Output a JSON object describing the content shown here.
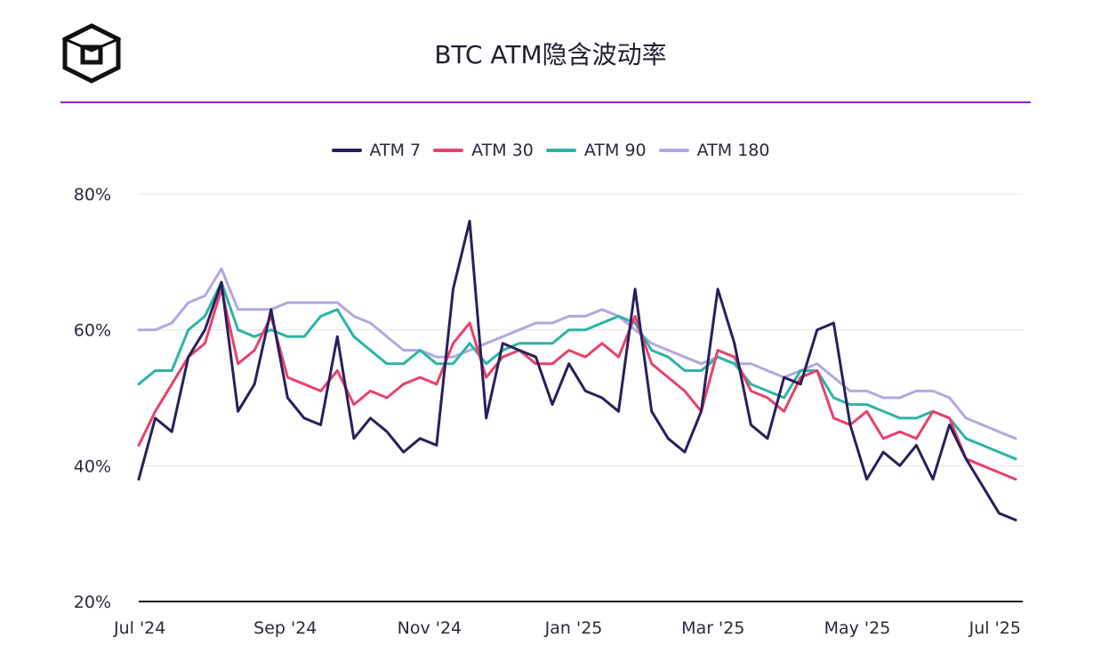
{
  "header": {
    "title": "BTC ATM隐含波动率"
  },
  "icons": {
    "logo": "cube-logo-icon"
  },
  "colors": {
    "accent_rule": "#8b1fe0",
    "atm7": "#2a1f5c",
    "atm30": "#e8426a",
    "atm90": "#2bb5a5",
    "atm180": "#b3a7e3"
  },
  "chart_data": {
    "type": "line",
    "title": "BTC ATM隐含波动率",
    "xlabel": "",
    "ylabel": "",
    "ylim": [
      20,
      80
    ],
    "y_ticks": [
      "80%",
      "60%",
      "40%",
      "20%"
    ],
    "y_tick_values": [
      80,
      60,
      40,
      20
    ],
    "x_ticks": [
      "Jul '24",
      "Sep '24",
      "Nov '24",
      "Jan '25",
      "Mar '25",
      "May '25",
      "Jul '25"
    ],
    "x_tick_values": [
      "2024-07-01",
      "2024-09-01",
      "2024-11-01",
      "2025-01-01",
      "2025-03-01",
      "2025-05-01",
      "2025-07-01"
    ],
    "x_range": [
      "2024-07-01",
      "2025-07-10"
    ],
    "grid": true,
    "legend_position": "top-center",
    "x": [
      "2024-07-01",
      "2024-07-08",
      "2024-07-15",
      "2024-07-22",
      "2024-07-29",
      "2024-08-05",
      "2024-08-12",
      "2024-08-19",
      "2024-08-26",
      "2024-09-02",
      "2024-09-09",
      "2024-09-16",
      "2024-09-23",
      "2024-09-30",
      "2024-10-07",
      "2024-10-14",
      "2024-10-21",
      "2024-10-28",
      "2024-11-04",
      "2024-11-11",
      "2024-11-18",
      "2024-11-25",
      "2024-12-02",
      "2024-12-09",
      "2024-12-16",
      "2024-12-23",
      "2024-12-30",
      "2025-01-06",
      "2025-01-13",
      "2025-01-20",
      "2025-01-27",
      "2025-02-03",
      "2025-02-10",
      "2025-02-17",
      "2025-02-24",
      "2025-03-03",
      "2025-03-10",
      "2025-03-17",
      "2025-03-24",
      "2025-03-31",
      "2025-04-07",
      "2025-04-14",
      "2025-04-21",
      "2025-04-28",
      "2025-05-05",
      "2025-05-12",
      "2025-05-19",
      "2025-05-26",
      "2025-06-02",
      "2025-06-09",
      "2025-06-16",
      "2025-06-23",
      "2025-06-30",
      "2025-07-07"
    ],
    "series": [
      {
        "name": "ATM 7",
        "values": [
          38,
          47,
          45,
          56,
          60,
          67,
          48,
          52,
          63,
          50,
          47,
          46,
          59,
          44,
          47,
          45,
          42,
          44,
          43,
          66,
          76,
          47,
          58,
          57,
          56,
          49,
          55,
          51,
          50,
          48,
          66,
          48,
          44,
          42,
          48,
          66,
          58,
          46,
          44,
          53,
          52,
          60,
          61,
          46,
          38,
          42,
          40,
          43,
          38,
          46,
          41,
          37,
          33,
          32
        ]
      },
      {
        "name": "ATM 30",
        "values": [
          43,
          48,
          52,
          56,
          58,
          66,
          55,
          57,
          62,
          53,
          52,
          51,
          54,
          49,
          51,
          50,
          52,
          53,
          52,
          58,
          61,
          53,
          56,
          57,
          55,
          55,
          57,
          56,
          58,
          56,
          62,
          55,
          53,
          51,
          48,
          57,
          56,
          51,
          50,
          48,
          53,
          54,
          47,
          46,
          48,
          44,
          45,
          44,
          48,
          47,
          41,
          40,
          39,
          38
        ]
      },
      {
        "name": "ATM 90",
        "values": [
          52,
          54,
          54,
          60,
          62,
          67,
          60,
          59,
          60,
          59,
          59,
          62,
          63,
          59,
          57,
          55,
          55,
          57,
          55,
          55,
          58,
          55,
          57,
          58,
          58,
          58,
          60,
          60,
          61,
          62,
          61,
          57,
          56,
          54,
          54,
          56,
          55,
          52,
          51,
          50,
          54,
          54,
          50,
          49,
          49,
          48,
          47,
          47,
          48,
          47,
          44,
          43,
          42,
          41
        ]
      },
      {
        "name": "ATM 180",
        "values": [
          60,
          60,
          61,
          64,
          65,
          69,
          63,
          63,
          63,
          64,
          64,
          64,
          64,
          62,
          61,
          59,
          57,
          57,
          56,
          56,
          57,
          58,
          59,
          60,
          61,
          61,
          62,
          62,
          63,
          62,
          60,
          58,
          57,
          56,
          55,
          56,
          55,
          55,
          54,
          53,
          54,
          55,
          53,
          51,
          51,
          50,
          50,
          51,
          51,
          50,
          47,
          46,
          45,
          44
        ]
      }
    ]
  }
}
